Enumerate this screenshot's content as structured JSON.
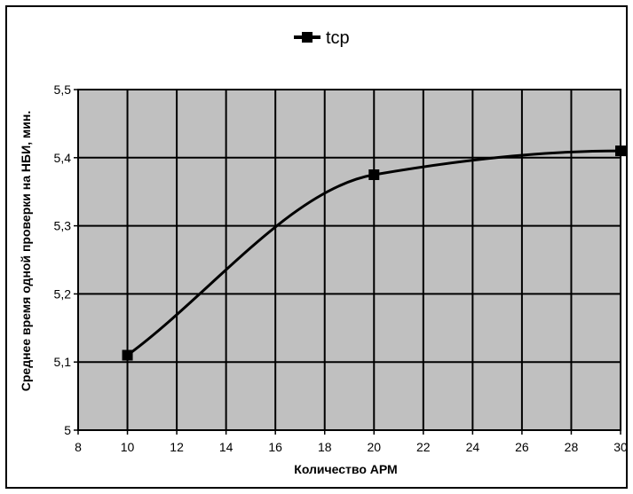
{
  "chart_data": {
    "type": "line",
    "title": "",
    "xlabel": "Количество АРМ",
    "ylabel": "Среднее время одной проверки на  НБИ, мин.",
    "xlim": [
      8,
      30
    ],
    "ylim": [
      5,
      5.5
    ],
    "x_ticks": [
      8,
      10,
      12,
      14,
      16,
      18,
      20,
      22,
      24,
      26,
      28,
      30
    ],
    "y_ticks": [
      5,
      5.1,
      5.2,
      5.3,
      5.4,
      5.5
    ],
    "x_tick_labels": [
      "8",
      "10",
      "12",
      "14",
      "16",
      "18",
      "20",
      "22",
      "24",
      "26",
      "28",
      "30"
    ],
    "y_tick_labels": [
      "5",
      "5,1",
      "5,2",
      "5,3",
      "5,4",
      "5,5"
    ],
    "grid": true,
    "legend_position": "top-center",
    "series": [
      {
        "name": "tср",
        "x": [
          10,
          20,
          30
        ],
        "y": [
          5.11,
          5.375,
          5.41
        ],
        "color": "#000000",
        "marker": "square",
        "smooth": true
      }
    ],
    "plot_background": "#c0c0c0"
  }
}
